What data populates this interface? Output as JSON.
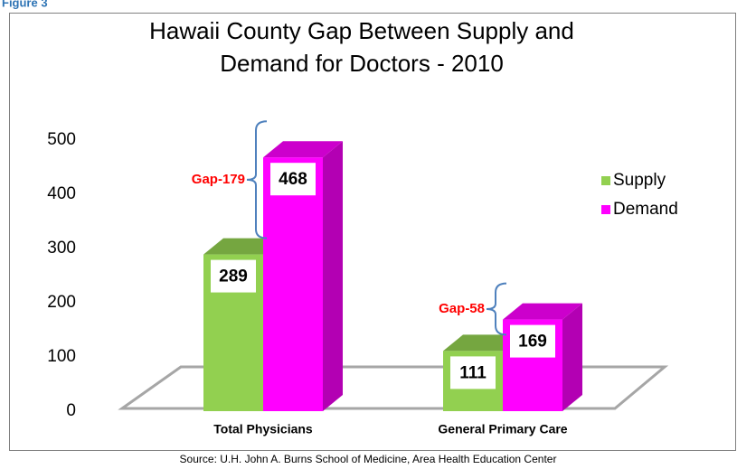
{
  "figure_label": "Figure 3",
  "chart_data": {
    "type": "bar3d",
    "title": "Hawaii County Gap Between Supply and Demand for Doctors - 2010",
    "categories": [
      "Total Physicians",
      "General Primary Care"
    ],
    "series": [
      {
        "name": "Supply",
        "color": "#92d050",
        "values": [
          289,
          111
        ]
      },
      {
        "name": "Demand",
        "color": "#ff00ff",
        "values": [
          468,
          169
        ]
      }
    ],
    "ylim": [
      0,
      500
    ],
    "yticks": [
      0,
      100,
      200,
      300,
      400,
      500
    ],
    "annotations": [
      "Gap-179",
      "Gap-58"
    ],
    "source": "Source:  U.H. John A. Burns School of Medicine, Area Health Education Center"
  }
}
